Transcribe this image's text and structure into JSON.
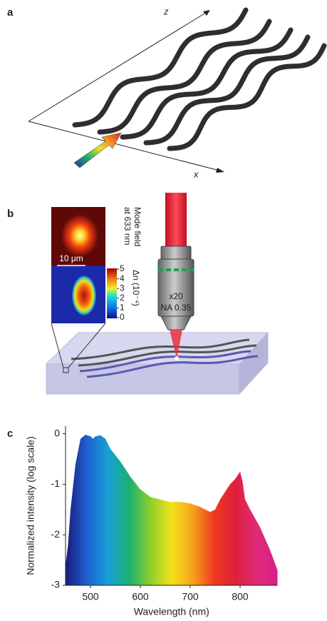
{
  "panel_a": {
    "label": "a",
    "z_label": "z",
    "x_label": "x"
  },
  "panel_b": {
    "label": "b",
    "mode_field": [
      "Mode field",
      "at 633 nm"
    ],
    "scale_bar": "10 μm",
    "colorbar": {
      "label": "Δn (10⁻⁴)",
      "ticks": [
        0,
        1,
        2,
        3,
        4,
        5
      ]
    },
    "objective": [
      "x20",
      "NA 0.35"
    ]
  },
  "chart_data": {
    "type": "area",
    "panel_label": "c",
    "xlabel": "Wavelength (nm)",
    "ylabel": "Normalized intensity (log scale)",
    "x": [
      450,
      455,
      460,
      470,
      480,
      490,
      500,
      505,
      510,
      520,
      530,
      540,
      560,
      580,
      600,
      620,
      640,
      660,
      680,
      700,
      720,
      740,
      750,
      760,
      770,
      780,
      790,
      800,
      805,
      810,
      820,
      840,
      860,
      875
    ],
    "y": [
      -2.6,
      -2.2,
      -1.5,
      -0.6,
      -0.1,
      -0.02,
      -0.05,
      -0.1,
      -0.05,
      -0.03,
      -0.1,
      -0.3,
      -0.55,
      -0.85,
      -1.1,
      -1.25,
      -1.3,
      -1.35,
      -1.35,
      -1.38,
      -1.45,
      -1.55,
      -1.5,
      -1.3,
      -1.15,
      -1.0,
      -0.9,
      -0.75,
      -0.95,
      -1.3,
      -1.5,
      -1.85,
      -2.3,
      -2.7
    ],
    "xlim": [
      450,
      875
    ],
    "ylim": [
      -3,
      0.15
    ],
    "xticks": [
      500,
      600,
      700,
      800
    ],
    "yticks": [
      0,
      -1,
      -2,
      -3
    ],
    "colors": [
      "#1a1a7a",
      "#1f5fd0",
      "#18a0d8",
      "#1bb070",
      "#8ccf2a",
      "#f2e21a",
      "#f7a21a",
      "#ee3a1e",
      "#e0203a",
      "#e02a78",
      "#d81e8a"
    ]
  }
}
